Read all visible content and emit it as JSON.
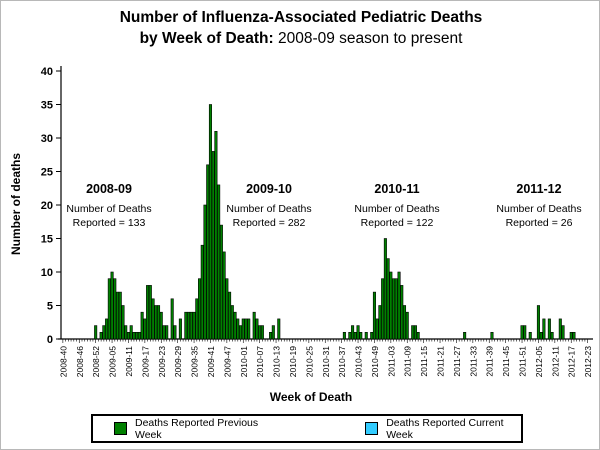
{
  "title": {
    "line1": "Number of Influenza-Associated Pediatric Deaths",
    "line2_bold": "by Week of Death:",
    "line2_rest": " 2008-09 season to present"
  },
  "y_axis": {
    "label": "Number of deaths"
  },
  "x_axis": {
    "label": "Week of Death"
  },
  "seasons": [
    {
      "name": "2008-09",
      "line1": "Number of Deaths",
      "line2": "Reported = 133"
    },
    {
      "name": "2009-10",
      "line1": "Number of Deaths",
      "line2": "Reported = 282"
    },
    {
      "name": "2010-11",
      "line1": "Number of Deaths",
      "line2": "Reported = 122"
    },
    {
      "name": "2011-12",
      "line1": "Number of Deaths",
      "line2": "Reported = 26"
    }
  ],
  "legend": {
    "items": [
      {
        "label": "Deaths Reported Previous Week",
        "color": "#008000"
      },
      {
        "label": "Deaths Reported Current Week",
        "color": "#33CCFF"
      }
    ]
  },
  "chart_data": {
    "type": "bar",
    "title": "Number of Influenza-Associated Pediatric Deaths by Week of Death: 2008-09 season to present",
    "xlabel": "Week of Death",
    "ylabel": "Number of deaths",
    "ylim": [
      0,
      40
    ],
    "y_ticks": [
      0,
      5,
      10,
      15,
      20,
      25,
      30,
      35,
      40
    ],
    "grid": false,
    "legend_position": "bottom",
    "bar_color": "#008000",
    "current_week_color": "#33CCFF",
    "x_first_week": "2008-40",
    "x_last_week": "2012-23",
    "week_ranges": [
      {
        "year": "2008",
        "from": 40,
        "to": 53
      },
      {
        "year": "2009",
        "from": 1,
        "to": 52
      },
      {
        "year": "2010",
        "from": 1,
        "to": 52
      },
      {
        "year": "2011",
        "from": 1,
        "to": 52
      },
      {
        "year": "2012",
        "from": 1,
        "to": 23
      }
    ],
    "x_tick_labels": [
      "2008-40",
      "2008-46",
      "2008-52",
      "2009-05",
      "2009-11",
      "2009-17",
      "2009-23",
      "2009-29",
      "2009-35",
      "2009-41",
      "2009-47",
      "2010-01",
      "2010-07",
      "2010-13",
      "2010-19",
      "2010-25",
      "2010-31",
      "2010-37",
      "2010-43",
      "2010-49",
      "2011-03",
      "2011-09",
      "2011-15",
      "2011-21",
      "2011-27",
      "2011-33",
      "2011-39",
      "2011-45",
      "2011-51",
      "2012-05",
      "2012-11",
      "2012-17",
      "2012-23"
    ],
    "season_totals": {
      "2008-09": 133,
      "2009-10": 282,
      "2010-11": 122,
      "2011-12": 26
    },
    "values_by_week": {
      "2008-52": 2,
      "2009-01": 1,
      "2009-02": 2,
      "2009-03": 3,
      "2009-04": 9,
      "2009-05": 10,
      "2009-06": 9,
      "2009-07": 7,
      "2009-08": 7,
      "2009-09": 5,
      "2009-10": 2,
      "2009-11": 1,
      "2009-12": 2,
      "2009-13": 1,
      "2009-14": 1,
      "2009-15": 1,
      "2009-16": 4,
      "2009-17": 3,
      "2009-18": 8,
      "2009-19": 8,
      "2009-20": 6,
      "2009-21": 5,
      "2009-22": 5,
      "2009-23": 4,
      "2009-24": 2,
      "2009-25": 2,
      "2009-27": 6,
      "2009-28": 2,
      "2009-30": 3,
      "2009-32": 4,
      "2009-33": 4,
      "2009-34": 4,
      "2009-35": 4,
      "2009-36": 6,
      "2009-37": 9,
      "2009-38": 14,
      "2009-39": 20,
      "2009-40": 26,
      "2009-41": 35,
      "2009-42": 28,
      "2009-43": 31,
      "2009-44": 23,
      "2009-45": 17,
      "2009-46": 13,
      "2009-47": 9,
      "2009-48": 7,
      "2009-49": 5,
      "2009-50": 4,
      "2009-51": 3,
      "2009-52": 2,
      "2010-01": 3,
      "2010-02": 3,
      "2010-03": 3,
      "2010-05": 4,
      "2010-06": 3,
      "2010-07": 2,
      "2010-08": 2,
      "2010-11": 1,
      "2010-12": 2,
      "2010-14": 3,
      "2010-38": 1,
      "2010-40": 1,
      "2010-41": 2,
      "2010-42": 1,
      "2010-43": 2,
      "2010-44": 1,
      "2010-46": 1,
      "2010-48": 1,
      "2010-49": 7,
      "2010-50": 3,
      "2010-51": 5,
      "2010-52": 9,
      "2011-01": 15,
      "2011-02": 12,
      "2011-03": 10,
      "2011-04": 9,
      "2011-05": 9,
      "2011-06": 10,
      "2011-07": 8,
      "2011-08": 5,
      "2011-09": 4,
      "2011-11": 2,
      "2011-12": 2,
      "2011-13": 1,
      "2011-30": 1,
      "2011-40": 1,
      "2011-51": 2,
      "2011-52": 2,
      "2012-02": 1,
      "2012-05": 5,
      "2012-06": 1,
      "2012-07": 3,
      "2012-09": 3,
      "2012-10": 1,
      "2012-13": 3,
      "2012-14": 2,
      "2012-17": 1,
      "2012-18": 1
    }
  }
}
